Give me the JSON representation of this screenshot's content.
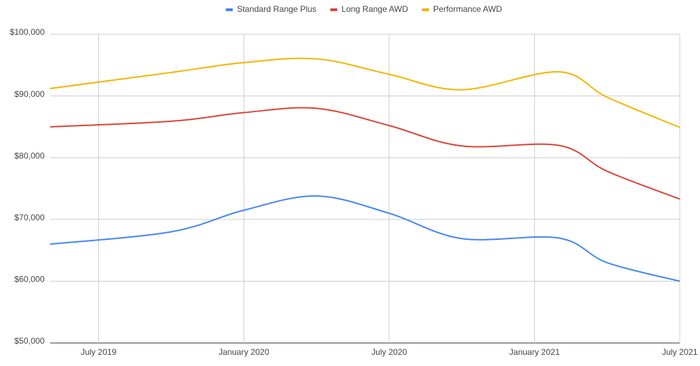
{
  "chart_data": {
    "type": "line",
    "x": [
      "2019-05",
      "2019-10",
      "2020-01",
      "2020-04",
      "2020-07",
      "2020-10",
      "2021-02",
      "2021-04",
      "2021-07"
    ],
    "series": [
      {
        "name": "Standard Range Plus",
        "color": "#4285f4",
        "values": [
          66000,
          68000,
          71500,
          73800,
          71000,
          66900,
          67000,
          63000,
          60000
        ]
      },
      {
        "name": "Long Range AWD",
        "color": "#db4437",
        "values": [
          85000,
          85900,
          87300,
          88000,
          85200,
          81900,
          82000,
          77800,
          73300
        ]
      },
      {
        "name": "Performance AWD",
        "color": "#f4b400",
        "values": [
          91200,
          93800,
          95400,
          96000,
          93500,
          91000,
          93900,
          89800,
          84900
        ]
      }
    ],
    "xlim": [
      "2019-05",
      "2021-07"
    ],
    "xticks": [
      {
        "value": "2019-07",
        "label": "July 2019"
      },
      {
        "value": "2020-01",
        "label": "January 2020"
      },
      {
        "value": "2020-07",
        "label": "July 2020"
      },
      {
        "value": "2021-01",
        "label": "January 2021"
      },
      {
        "value": "2021-07",
        "label": "July 2021"
      }
    ],
    "ylim": [
      50000,
      100000
    ],
    "yticks": [
      {
        "value": 50000,
        "label": "$50,000"
      },
      {
        "value": 60000,
        "label": "$60,000"
      },
      {
        "value": 70000,
        "label": "$70,000"
      },
      {
        "value": 80000,
        "label": "$80,000"
      },
      {
        "value": 90000,
        "label": "$90,000"
      },
      {
        "value": 100000,
        "label": "$100,000"
      }
    ],
    "grid": true,
    "legend": "top"
  }
}
